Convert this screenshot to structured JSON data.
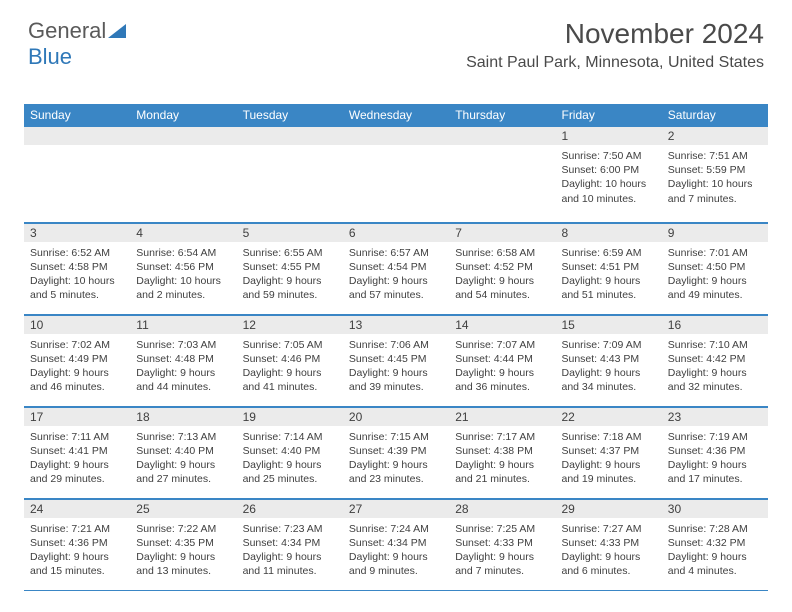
{
  "brand": {
    "part1": "General",
    "part2": "Blue"
  },
  "title": "November 2024",
  "location": "Saint Paul Park, Minnesota, United States",
  "colors": {
    "header_bg": "#3a86c5",
    "header_text": "#ffffff",
    "daynum_bg": "#ebebeb",
    "border": "#3a86c5",
    "text": "#404040"
  },
  "day_headers": [
    "Sunday",
    "Monday",
    "Tuesday",
    "Wednesday",
    "Thursday",
    "Friday",
    "Saturday"
  ],
  "weeks": [
    [
      {
        "n": "",
        "sr": "",
        "ss": "",
        "dl": ""
      },
      {
        "n": "",
        "sr": "",
        "ss": "",
        "dl": ""
      },
      {
        "n": "",
        "sr": "",
        "ss": "",
        "dl": ""
      },
      {
        "n": "",
        "sr": "",
        "ss": "",
        "dl": ""
      },
      {
        "n": "",
        "sr": "",
        "ss": "",
        "dl": ""
      },
      {
        "n": "1",
        "sr": "Sunrise: 7:50 AM",
        "ss": "Sunset: 6:00 PM",
        "dl": "Daylight: 10 hours and 10 minutes."
      },
      {
        "n": "2",
        "sr": "Sunrise: 7:51 AM",
        "ss": "Sunset: 5:59 PM",
        "dl": "Daylight: 10 hours and 7 minutes."
      }
    ],
    [
      {
        "n": "3",
        "sr": "Sunrise: 6:52 AM",
        "ss": "Sunset: 4:58 PM",
        "dl": "Daylight: 10 hours and 5 minutes."
      },
      {
        "n": "4",
        "sr": "Sunrise: 6:54 AM",
        "ss": "Sunset: 4:56 PM",
        "dl": "Daylight: 10 hours and 2 minutes."
      },
      {
        "n": "5",
        "sr": "Sunrise: 6:55 AM",
        "ss": "Sunset: 4:55 PM",
        "dl": "Daylight: 9 hours and 59 minutes."
      },
      {
        "n": "6",
        "sr": "Sunrise: 6:57 AM",
        "ss": "Sunset: 4:54 PM",
        "dl": "Daylight: 9 hours and 57 minutes."
      },
      {
        "n": "7",
        "sr": "Sunrise: 6:58 AM",
        "ss": "Sunset: 4:52 PM",
        "dl": "Daylight: 9 hours and 54 minutes."
      },
      {
        "n": "8",
        "sr": "Sunrise: 6:59 AM",
        "ss": "Sunset: 4:51 PM",
        "dl": "Daylight: 9 hours and 51 minutes."
      },
      {
        "n": "9",
        "sr": "Sunrise: 7:01 AM",
        "ss": "Sunset: 4:50 PM",
        "dl": "Daylight: 9 hours and 49 minutes."
      }
    ],
    [
      {
        "n": "10",
        "sr": "Sunrise: 7:02 AM",
        "ss": "Sunset: 4:49 PM",
        "dl": "Daylight: 9 hours and 46 minutes."
      },
      {
        "n": "11",
        "sr": "Sunrise: 7:03 AM",
        "ss": "Sunset: 4:48 PM",
        "dl": "Daylight: 9 hours and 44 minutes."
      },
      {
        "n": "12",
        "sr": "Sunrise: 7:05 AM",
        "ss": "Sunset: 4:46 PM",
        "dl": "Daylight: 9 hours and 41 minutes."
      },
      {
        "n": "13",
        "sr": "Sunrise: 7:06 AM",
        "ss": "Sunset: 4:45 PM",
        "dl": "Daylight: 9 hours and 39 minutes."
      },
      {
        "n": "14",
        "sr": "Sunrise: 7:07 AM",
        "ss": "Sunset: 4:44 PM",
        "dl": "Daylight: 9 hours and 36 minutes."
      },
      {
        "n": "15",
        "sr": "Sunrise: 7:09 AM",
        "ss": "Sunset: 4:43 PM",
        "dl": "Daylight: 9 hours and 34 minutes."
      },
      {
        "n": "16",
        "sr": "Sunrise: 7:10 AM",
        "ss": "Sunset: 4:42 PM",
        "dl": "Daylight: 9 hours and 32 minutes."
      }
    ],
    [
      {
        "n": "17",
        "sr": "Sunrise: 7:11 AM",
        "ss": "Sunset: 4:41 PM",
        "dl": "Daylight: 9 hours and 29 minutes."
      },
      {
        "n": "18",
        "sr": "Sunrise: 7:13 AM",
        "ss": "Sunset: 4:40 PM",
        "dl": "Daylight: 9 hours and 27 minutes."
      },
      {
        "n": "19",
        "sr": "Sunrise: 7:14 AM",
        "ss": "Sunset: 4:40 PM",
        "dl": "Daylight: 9 hours and 25 minutes."
      },
      {
        "n": "20",
        "sr": "Sunrise: 7:15 AM",
        "ss": "Sunset: 4:39 PM",
        "dl": "Daylight: 9 hours and 23 minutes."
      },
      {
        "n": "21",
        "sr": "Sunrise: 7:17 AM",
        "ss": "Sunset: 4:38 PM",
        "dl": "Daylight: 9 hours and 21 minutes."
      },
      {
        "n": "22",
        "sr": "Sunrise: 7:18 AM",
        "ss": "Sunset: 4:37 PM",
        "dl": "Daylight: 9 hours and 19 minutes."
      },
      {
        "n": "23",
        "sr": "Sunrise: 7:19 AM",
        "ss": "Sunset: 4:36 PM",
        "dl": "Daylight: 9 hours and 17 minutes."
      }
    ],
    [
      {
        "n": "24",
        "sr": "Sunrise: 7:21 AM",
        "ss": "Sunset: 4:36 PM",
        "dl": "Daylight: 9 hours and 15 minutes."
      },
      {
        "n": "25",
        "sr": "Sunrise: 7:22 AM",
        "ss": "Sunset: 4:35 PM",
        "dl": "Daylight: 9 hours and 13 minutes."
      },
      {
        "n": "26",
        "sr": "Sunrise: 7:23 AM",
        "ss": "Sunset: 4:34 PM",
        "dl": "Daylight: 9 hours and 11 minutes."
      },
      {
        "n": "27",
        "sr": "Sunrise: 7:24 AM",
        "ss": "Sunset: 4:34 PM",
        "dl": "Daylight: 9 hours and 9 minutes."
      },
      {
        "n": "28",
        "sr": "Sunrise: 7:25 AM",
        "ss": "Sunset: 4:33 PM",
        "dl": "Daylight: 9 hours and 7 minutes."
      },
      {
        "n": "29",
        "sr": "Sunrise: 7:27 AM",
        "ss": "Sunset: 4:33 PM",
        "dl": "Daylight: 9 hours and 6 minutes."
      },
      {
        "n": "30",
        "sr": "Sunrise: 7:28 AM",
        "ss": "Sunset: 4:32 PM",
        "dl": "Daylight: 9 hours and 4 minutes."
      }
    ]
  ]
}
